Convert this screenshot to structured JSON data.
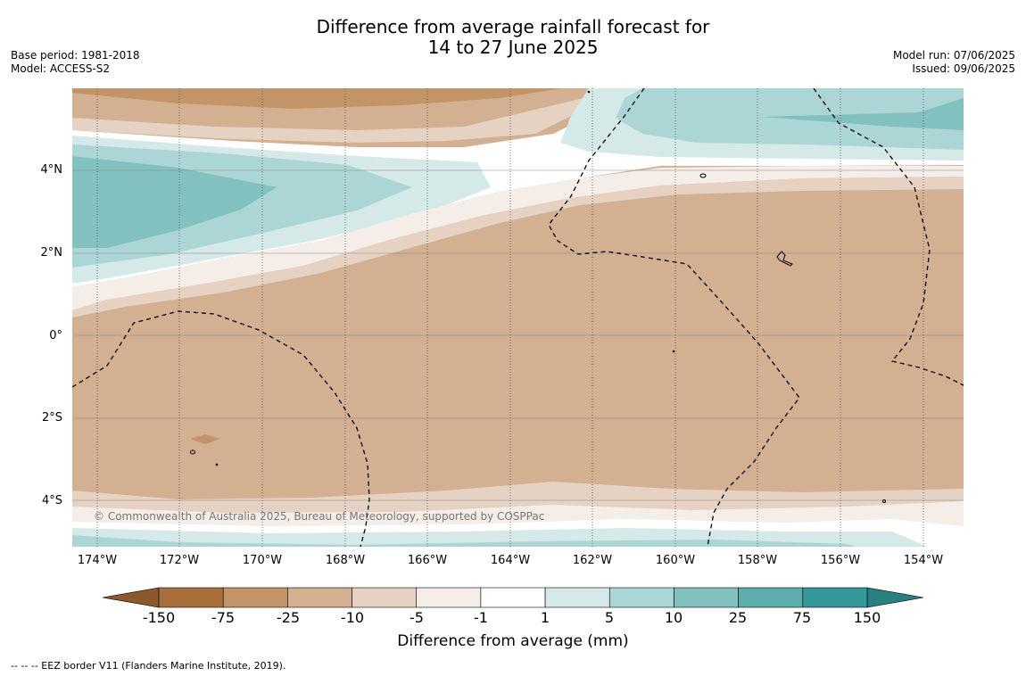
{
  "header": {
    "title_line1": "Difference from average rainfall forecast for",
    "title_line2": "14 to 27 June 2025",
    "base_period": "Base period: 1981-2018",
    "model": "Model: ACCESS-S2",
    "model_run": "Model run: 07/06/2025",
    "issued": "Issued: 09/06/2025"
  },
  "map": {
    "lat_labels": [
      "4°N",
      "2°N",
      "0°",
      "2°S",
      "4°S"
    ],
    "lon_labels": [
      "174°W",
      "172°W",
      "170°W",
      "168°W",
      "166°W",
      "164°W",
      "162°W",
      "160°W",
      "158°W",
      "156°W",
      "154°W"
    ],
    "copyright": "© Commonwealth of Australia 2025, Bureau of Meteorology, supported by COSPPac"
  },
  "colorbar": {
    "ticks": [
      "-150",
      "-75",
      "-25",
      "-10",
      "-5",
      "-1",
      "1",
      "5",
      "10",
      "25",
      "75",
      "150"
    ],
    "colors": [
      "#a86f3c",
      "#c29468",
      "#d2b091",
      "#e5d2c2",
      "#f5ede8",
      "#ffffff",
      "#d5e9e8",
      "#acd6d5",
      "#82c1bf",
      "#5cadab",
      "#35989a"
    ],
    "low_arrow_color": "#8a5a2e",
    "high_arrow_color": "#2a7f7f",
    "title": "Difference from average (mm)"
  },
  "footnote": "--  --  -- EEZ border V11 (Flanders Marine Institute, 2019)."
}
